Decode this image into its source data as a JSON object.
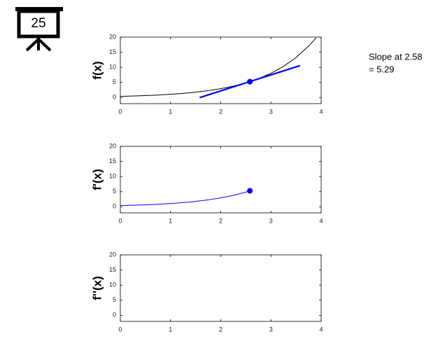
{
  "frame_label": "25",
  "annotation": [
    "Slope at 2.58",
    "= 5.29"
  ],
  "chart_data": [
    {
      "type": "line",
      "ylabel": "f(x)",
      "xlim": [
        0,
        4
      ],
      "ylim": [
        -2,
        20
      ],
      "xticks": [
        0,
        1,
        2,
        3,
        4
      ],
      "yticks": [
        0,
        5,
        10,
        15,
        20
      ],
      "series": [
        {
          "color": "#000000",
          "linewidth": 1,
          "x": [
            0,
            0.25,
            0.5,
            0.75,
            1,
            1.25,
            1.5,
            1.75,
            2,
            2.25,
            2.5,
            2.58,
            2.75,
            3,
            3.25,
            3.5,
            3.75,
            3.9
          ],
          "values": [
            0.4,
            0.51,
            0.66,
            0.85,
            1.09,
            1.4,
            1.79,
            2.3,
            2.96,
            3.8,
            4.87,
            5.28,
            6.26,
            8.03,
            10.31,
            13.25,
            17.01,
            19.76
          ]
        },
        {
          "color": "#0000ff",
          "linewidth": 2.2,
          "x": [
            1.58,
            3.58
          ],
          "values": [
            -0.01,
            10.57
          ]
        },
        {
          "color": "#0000ff",
          "marker": true,
          "x": [
            2.58
          ],
          "values": [
            5.28
          ]
        }
      ]
    },
    {
      "type": "line",
      "ylabel": "f'(x)",
      "xlim": [
        0,
        4
      ],
      "ylim": [
        -2,
        20
      ],
      "xticks": [
        0,
        1,
        2,
        3,
        4
      ],
      "yticks": [
        0,
        5,
        10,
        15,
        20
      ],
      "series": [
        {
          "color": "#0000ff",
          "linewidth": 1,
          "x": [
            0,
            0.25,
            0.5,
            0.75,
            1,
            1.25,
            1.5,
            1.75,
            2,
            2.25,
            2.5,
            2.58
          ],
          "values": [
            0.4,
            0.51,
            0.66,
            0.85,
            1.09,
            1.4,
            1.79,
            2.3,
            2.96,
            3.8,
            4.87,
            5.28
          ]
        },
        {
          "color": "#0000ff",
          "marker": true,
          "x": [
            2.58
          ],
          "values": [
            5.29
          ]
        }
      ]
    },
    {
      "type": "line",
      "ylabel": "f''(x)",
      "xlim": [
        0,
        4
      ],
      "ylim": [
        -2,
        20
      ],
      "xticks": [
        0,
        1,
        2,
        3,
        4
      ],
      "yticks": [
        0,
        5,
        10,
        15,
        20
      ],
      "series": []
    }
  ]
}
